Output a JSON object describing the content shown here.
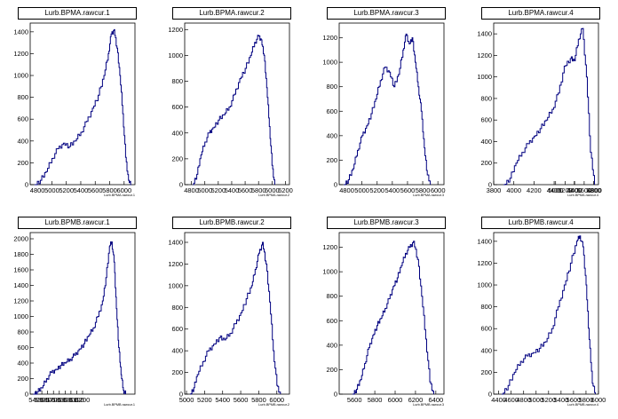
{
  "chart_data": [
    {
      "type": "histogram",
      "title": "Lurb.BPMA.rawcur.1",
      "xlabel": "Lurb.BPMA.rawcur.1",
      "xlim": [
        4700,
        6150
      ],
      "ylim": [
        0,
        1480
      ],
      "xticks": [
        "4800",
        "5000",
        "5200",
        "5400",
        "5600",
        "5800",
        "6000"
      ],
      "yticks": [
        "0",
        "200",
        "400",
        "600",
        "800",
        "1000",
        "1200",
        "1400"
      ],
      "ytick_values": [
        0,
        200,
        400,
        600,
        800,
        1000,
        1200,
        1400
      ],
      "line_color": "#000080",
      "series": [
        {
          "x": [
            4760,
            4840,
            4920,
            5000,
            5080,
            5160,
            5240,
            5320,
            5400,
            5480,
            5560,
            5640,
            5720,
            5780,
            5820,
            5860,
            5900,
            5940,
            5980,
            6020,
            6060,
            6100
          ],
          "y": [
            0,
            40,
            120,
            240,
            330,
            380,
            350,
            400,
            480,
            580,
            700,
            820,
            1000,
            1200,
            1380,
            1420,
            1250,
            1000,
            650,
            250,
            40,
            0
          ]
        }
      ]
    },
    {
      "type": "histogram",
      "title": "Lurb.BPMA.rawcur.2",
      "xlabel": "Lurb.BPMA.rawcur.2",
      "xlim": [
        4700,
        6260
      ],
      "ylim": [
        0,
        1250
      ],
      "xticks": [
        "4800",
        "5000",
        "5200",
        "5400",
        "5600",
        "5800",
        "6000",
        "6200"
      ],
      "yticks": [
        "0",
        "200",
        "400",
        "600",
        "800",
        "1000",
        "1200"
      ],
      "ytick_values": [
        0,
        200,
        400,
        600,
        800,
        1000,
        1200
      ],
      "line_color": "#000080",
      "series": [
        {
          "x": [
            4820,
            4880,
            4940,
            5000,
            5060,
            5120,
            5200,
            5280,
            5360,
            5440,
            5520,
            5600,
            5680,
            5740,
            5800,
            5840,
            5880,
            5920,
            5960,
            6000,
            6040
          ],
          "y": [
            0,
            80,
            230,
            330,
            400,
            440,
            500,
            540,
            600,
            700,
            820,
            900,
            1000,
            1100,
            1150,
            1120,
            1000,
            750,
            450,
            150,
            0
          ]
        }
      ]
    },
    {
      "type": "histogram",
      "title": "Lurb.BPMA.rawcur.3",
      "xlabel": "Lurb.BPMA.rawcur.3",
      "xlim": [
        4700,
        6080
      ],
      "ylim": [
        0,
        1320
      ],
      "xticks": [
        "4800",
        "5000",
        "5200",
        "5400",
        "5600",
        "5800",
        "6000"
      ],
      "yticks": [
        "0",
        "200",
        "400",
        "600",
        "800",
        "1000",
        "1200"
      ],
      "ytick_values": [
        0,
        200,
        400,
        600,
        800,
        1000,
        1200
      ],
      "line_color": "#000080",
      "series": [
        {
          "x": [
            4760,
            4820,
            4880,
            4940,
            5000,
            5060,
            5120,
            5180,
            5240,
            5300,
            5360,
            5420,
            5480,
            5540,
            5580,
            5620,
            5660,
            5700,
            5740,
            5780,
            5820,
            5860,
            5900
          ],
          "y": [
            0,
            40,
            130,
            280,
            400,
            480,
            580,
            700,
            850,
            960,
            920,
            800,
            900,
            1100,
            1230,
            1150,
            1200,
            1000,
            800,
            600,
            300,
            80,
            0
          ]
        }
      ]
    },
    {
      "type": "histogram",
      "title": "Lurb.BPMA.rawcur.4",
      "xlabel": "Lurb.BPMA.rawcur.4",
      "xlim": [
        3800,
        4840
      ],
      "ylim": [
        0,
        1500
      ],
      "xticks": [
        "3800",
        "4000",
        "4200",
        "4400",
        "4600",
        "4800",
        "5000",
        "5200",
        "5400",
        "5600",
        "5800"
      ],
      "yticks": [
        "0",
        "200",
        "400",
        "600",
        "800",
        "1000",
        "1200",
        "1400"
      ],
      "ytick_values": [
        0,
        200,
        400,
        600,
        800,
        1000,
        1200,
        1400
      ],
      "line_color": "#000080",
      "series": [
        {
          "x": [
            3900,
            3960,
            4020,
            4080,
            4140,
            4200,
            4260,
            4320,
            4380,
            4440,
            4500,
            4560,
            4600,
            4640,
            4680,
            4720,
            4760,
            4800
          ],
          "y": [
            0,
            60,
            200,
            300,
            380,
            450,
            520,
            600,
            700,
            850,
            1100,
            1170,
            1150,
            1350,
            1450,
            1000,
            300,
            0
          ]
        }
      ]
    },
    {
      "type": "histogram",
      "title": "Lurb.BPMB.rawcur.1",
      "xlabel": "Lurb.BPMB.rawcur.1",
      "xlim": [
        5300,
        7100
      ],
      "ylim": [
        0,
        2080
      ],
      "xticks": [
        "5400",
        "5500",
        "5600",
        "5700",
        "5800",
        "5900",
        "6000",
        "6100",
        "6200"
      ],
      "yticks": [
        "0",
        "200",
        "400",
        "600",
        "800",
        "1000",
        "1200",
        "1400",
        "1600",
        "1800",
        "2000"
      ],
      "ytick_values": [
        0,
        200,
        400,
        600,
        800,
        1000,
        1200,
        1400,
        1600,
        1800,
        2000
      ],
      "line_color": "#000080",
      "series": [
        {
          "x": [
            5350,
            5420,
            5500,
            5580,
            5660,
            5740,
            5820,
            5900,
            5980,
            6060,
            6140,
            6220,
            6300,
            6380,
            6460,
            6540,
            6600,
            6660,
            6700,
            6740,
            6780,
            6820,
            6860,
            6900,
            6940
          ],
          "y": [
            0,
            30,
            80,
            200,
            280,
            320,
            370,
            400,
            450,
            500,
            580,
            650,
            750,
            850,
            1000,
            1200,
            1500,
            1900,
            1960,
            1700,
            1100,
            600,
            250,
            50,
            0
          ]
        }
      ]
    },
    {
      "type": "histogram",
      "title": "Lurb.BPMB.rawcur.2",
      "xlabel": "Lurb.BPMB.rawcur.2",
      "xlim": [
        4980,
        6140
      ],
      "ylim": [
        0,
        1490
      ],
      "xticks": [
        "5000",
        "5200",
        "5400",
        "5600",
        "5800",
        "6000"
      ],
      "yticks": [
        "0",
        "200",
        "400",
        "600",
        "800",
        "1000",
        "1200",
        "1400"
      ],
      "ytick_values": [
        0,
        200,
        400,
        600,
        800,
        1000,
        1200,
        1400
      ],
      "line_color": "#000080",
      "series": [
        {
          "x": [
            5040,
            5080,
            5120,
            5180,
            5240,
            5300,
            5360,
            5420,
            5480,
            5540,
            5600,
            5660,
            5720,
            5760,
            5800,
            5840,
            5880,
            5920,
            5960,
            6000,
            6040
          ],
          "y": [
            0,
            60,
            180,
            300,
            400,
            460,
            520,
            500,
            560,
            650,
            750,
            880,
            1000,
            1150,
            1300,
            1400,
            1200,
            850,
            400,
            80,
            0
          ]
        }
      ]
    },
    {
      "type": "histogram",
      "title": "Lurb.BPMB.rawcur.3",
      "xlabel": "Lurb.BPMB.rawcur.3",
      "xlim": [
        5450,
        6480
      ],
      "ylim": [
        0,
        1320
      ],
      "xticks": [
        "5600",
        "5800",
        "6000",
        "6200",
        "6400"
      ],
      "yticks": [
        "0",
        "200",
        "400",
        "600",
        "800",
        "1000",
        "1200"
      ],
      "ytick_values": [
        0,
        200,
        400,
        600,
        800,
        1000,
        1200
      ],
      "line_color": "#000080",
      "series": [
        {
          "x": [
            5580,
            5620,
            5660,
            5700,
            5740,
            5780,
            5820,
            5860,
            5900,
            5940,
            5980,
            6020,
            6060,
            6100,
            6140,
            6180,
            6220,
            6260,
            6300,
            6340,
            6380
          ],
          "y": [
            0,
            40,
            120,
            250,
            380,
            480,
            560,
            620,
            700,
            780,
            880,
            950,
            1050,
            1150,
            1200,
            1250,
            1100,
            800,
            450,
            100,
            0
          ]
        }
      ]
    },
    {
      "type": "histogram",
      "title": "Lurb.BPMB.rawcur.4",
      "xlabel": "Lurb.BPMB.rawcur.4",
      "xlim": [
        4320,
        6000
      ],
      "ylim": [
        0,
        1480
      ],
      "xticks": [
        "4400",
        "4600",
        "4800",
        "5000",
        "5200",
        "5400",
        "5600",
        "5800",
        "6000"
      ],
      "yticks": [
        "0",
        "200",
        "400",
        "600",
        "800",
        "1000",
        "1200",
        "1400"
      ],
      "ytick_values": [
        0,
        200,
        400,
        600,
        800,
        1000,
        1200,
        1400
      ],
      "line_color": "#000080",
      "series": [
        {
          "x": [
            4450,
            4550,
            4650,
            4750,
            4850,
            4950,
            5050,
            5150,
            5250,
            5350,
            5450,
            5550,
            5650,
            5700,
            5750,
            5800,
            5850,
            5900,
            5950
          ],
          "y": [
            0,
            80,
            200,
            300,
            350,
            380,
            420,
            480,
            600,
            800,
            1000,
            1200,
            1400,
            1450,
            1350,
            1000,
            500,
            100,
            0
          ]
        }
      ]
    }
  ]
}
